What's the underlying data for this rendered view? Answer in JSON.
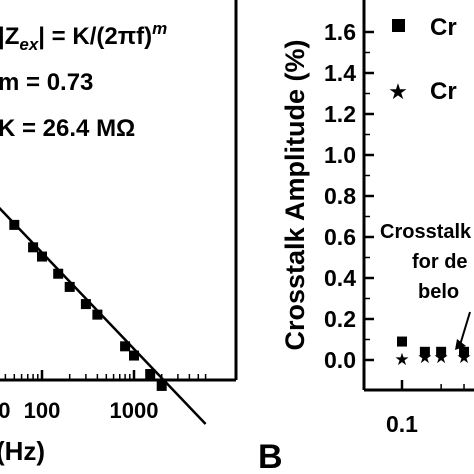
{
  "chart_data": [
    {
      "panel": "A",
      "type": "line",
      "annotations": [
        "|Z",
        "ex",
        "| = K/(2πf)",
        "m",
        "m = 0.73",
        "K = 26.4 MΩ"
      ],
      "xlabel": "(Hz)",
      "xscale": "log",
      "xticks": [
        "100",
        "1000"
      ],
      "xlim": [
        8,
        6000
      ],
      "ylim_description": "log impedance (axis labels cropped)",
      "series": [
        {
          "marker": "square",
          "x": [
            20,
            30,
            50,
            80,
            100,
            150,
            200,
            300,
            400,
            800,
            1000,
            1500,
            2000
          ],
          "y_decades_below_top": [
            0.04,
            0.18,
            0.34,
            0.51,
            0.58,
            0.71,
            0.81,
            0.94,
            1.02,
            1.26,
            1.33,
            1.47,
            1.56
          ]
        }
      ],
      "fit_line": {
        "x": [
          8,
          6000
        ],
        "slope_log": -0.73
      }
    },
    {
      "panel": "B",
      "type": "scatter",
      "ylabel": "Crosstalk Amplitude (%)",
      "xscale": "log",
      "xticks": [
        "0.1"
      ],
      "yticks": [
        "0.0",
        "0.2",
        "0.4",
        "0.6",
        "0.8",
        "1.0",
        "1.2",
        "1.4",
        "1.6"
      ],
      "ylim": [
        -0.08,
        1.65
      ],
      "legend": [
        {
          "marker": "square",
          "label": "Cr"
        },
        {
          "marker": "star",
          "label": "Cr"
        }
      ],
      "annotation_lines": [
        "Crosstalk",
        "for de",
        "belo"
      ],
      "series": [
        {
          "marker": "square",
          "x": [
            0.1,
            0.15,
            0.2,
            0.3
          ],
          "y": [
            0.09,
            0.04,
            0.04,
            0.04
          ]
        },
        {
          "marker": "star",
          "x": [
            0.1,
            0.15,
            0.2,
            0.3
          ],
          "y": [
            0.01,
            0.02,
            0.02,
            0.02
          ]
        }
      ]
    }
  ],
  "panel_label_b": "B"
}
